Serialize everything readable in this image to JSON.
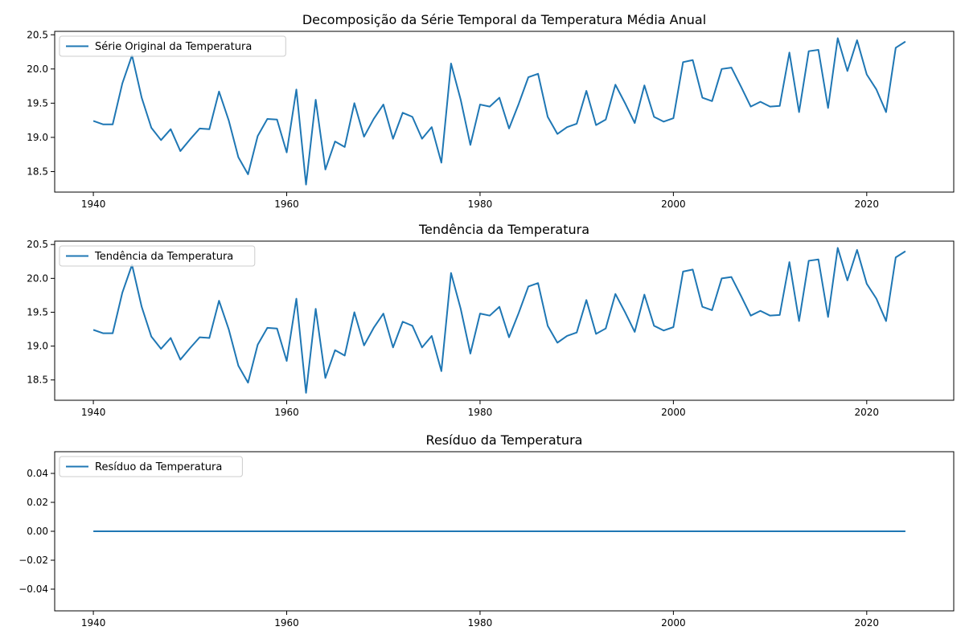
{
  "chart_data": [
    {
      "type": "line",
      "title": "Decomposição da Série Temporal da Temperatura Média Anual",
      "xlabel": "",
      "ylabel": "",
      "xlim": [
        1936,
        2029
      ],
      "ylim": [
        18.2,
        20.55
      ],
      "xticks": [
        1940,
        1960,
        1980,
        2000,
        2020
      ],
      "yticks": [
        18.5,
        19.0,
        19.5,
        20.0,
        20.5
      ],
      "ytick_labels": [
        "18.5",
        "19.0",
        "19.5",
        "20.0",
        "20.5"
      ],
      "legend": {
        "placement": "upper-left",
        "entries": [
          "Série Original da Temperatura"
        ]
      },
      "color": "#1f77b4",
      "grid": false,
      "series": [
        {
          "name": "Série Original da Temperatura",
          "x": [
            1940,
            1941,
            1942,
            1943,
            1944,
            1945,
            1946,
            1947,
            1948,
            1949,
            1950,
            1951,
            1952,
            1953,
            1954,
            1955,
            1956,
            1957,
            1958,
            1959,
            1960,
            1961,
            1962,
            1963,
            1964,
            1965,
            1966,
            1967,
            1968,
            1969,
            1970,
            1971,
            1972,
            1973,
            1974,
            1975,
            1976,
            1977,
            1978,
            1979,
            1980,
            1981,
            1982,
            1983,
            1984,
            1985,
            1986,
            1987,
            1988,
            1989,
            1990,
            1991,
            1992,
            1993,
            1994,
            1995,
            1996,
            1997,
            1998,
            1999,
            2000,
            2001,
            2002,
            2003,
            2004,
            2005,
            2006,
            2007,
            2008,
            2009,
            2010,
            2011,
            2012,
            2013,
            2014,
            2015,
            2016,
            2017,
            2018,
            2019,
            2020,
            2021,
            2022,
            2023,
            2024
          ],
          "y": [
            19.24,
            19.19,
            19.19,
            19.79,
            20.2,
            19.58,
            19.14,
            18.96,
            19.12,
            18.8,
            18.97,
            19.13,
            19.12,
            19.67,
            19.25,
            18.71,
            18.46,
            19.02,
            19.27,
            19.26,
            18.78,
            19.7,
            18.31,
            19.55,
            18.53,
            18.94,
            18.86,
            19.5,
            19.01,
            19.27,
            19.48,
            18.98,
            19.36,
            19.3,
            18.98,
            19.15,
            18.63,
            20.08,
            19.55,
            18.89,
            19.48,
            19.45,
            19.58,
            19.13,
            19.49,
            19.88,
            19.93,
            19.3,
            19.05,
            19.15,
            19.2,
            19.68,
            19.18,
            19.26,
            19.77,
            19.5,
            19.21,
            19.76,
            19.3,
            19.23,
            19.28,
            20.1,
            20.13,
            19.58,
            19.53,
            20.0,
            20.02,
            19.74,
            19.45,
            19.52,
            19.45,
            19.46,
            20.24,
            19.37,
            20.26,
            20.28,
            19.43,
            20.45,
            19.97,
            20.42,
            19.92,
            19.7,
            19.37,
            20.31,
            20.4
          ]
        }
      ]
    },
    {
      "type": "line",
      "title": "Tendência da Temperatura",
      "xlabel": "",
      "ylabel": "",
      "xlim": [
        1936,
        2029
      ],
      "ylim": [
        18.2,
        20.55
      ],
      "xticks": [
        1940,
        1960,
        1980,
        2000,
        2020
      ],
      "yticks": [
        18.5,
        19.0,
        19.5,
        20.0,
        20.5
      ],
      "ytick_labels": [
        "18.5",
        "19.0",
        "19.5",
        "20.0",
        "20.5"
      ],
      "legend": {
        "placement": "upper-left",
        "entries": [
          "Tendência da Temperatura"
        ]
      },
      "color": "#1f77b4",
      "grid": false,
      "series": [
        {
          "name": "Tendência da Temperatura",
          "x": [
            1940,
            1941,
            1942,
            1943,
            1944,
            1945,
            1946,
            1947,
            1948,
            1949,
            1950,
            1951,
            1952,
            1953,
            1954,
            1955,
            1956,
            1957,
            1958,
            1959,
            1960,
            1961,
            1962,
            1963,
            1964,
            1965,
            1966,
            1967,
            1968,
            1969,
            1970,
            1971,
            1972,
            1973,
            1974,
            1975,
            1976,
            1977,
            1978,
            1979,
            1980,
            1981,
            1982,
            1983,
            1984,
            1985,
            1986,
            1987,
            1988,
            1989,
            1990,
            1991,
            1992,
            1993,
            1994,
            1995,
            1996,
            1997,
            1998,
            1999,
            2000,
            2001,
            2002,
            2003,
            2004,
            2005,
            2006,
            2007,
            2008,
            2009,
            2010,
            2011,
            2012,
            2013,
            2014,
            2015,
            2016,
            2017,
            2018,
            2019,
            2020,
            2021,
            2022,
            2023,
            2024
          ],
          "y": [
            19.24,
            19.19,
            19.19,
            19.79,
            20.2,
            19.58,
            19.14,
            18.96,
            19.12,
            18.8,
            18.97,
            19.13,
            19.12,
            19.67,
            19.25,
            18.71,
            18.46,
            19.02,
            19.27,
            19.26,
            18.78,
            19.7,
            18.31,
            19.55,
            18.53,
            18.94,
            18.86,
            19.5,
            19.01,
            19.27,
            19.48,
            18.98,
            19.36,
            19.3,
            18.98,
            19.15,
            18.63,
            20.08,
            19.55,
            18.89,
            19.48,
            19.45,
            19.58,
            19.13,
            19.49,
            19.88,
            19.93,
            19.3,
            19.05,
            19.15,
            19.2,
            19.68,
            19.18,
            19.26,
            19.77,
            19.5,
            19.21,
            19.76,
            19.3,
            19.23,
            19.28,
            20.1,
            20.13,
            19.58,
            19.53,
            20.0,
            20.02,
            19.74,
            19.45,
            19.52,
            19.45,
            19.46,
            20.24,
            19.37,
            20.26,
            20.28,
            19.43,
            20.45,
            19.97,
            20.42,
            19.92,
            19.7,
            19.37,
            20.31,
            20.4
          ]
        }
      ]
    },
    {
      "type": "line",
      "title": "Resíduo da Temperatura",
      "xlabel": "",
      "ylabel": "",
      "xlim": [
        1936,
        2029
      ],
      "ylim": [
        -0.055,
        0.055
      ],
      "xticks": [
        1940,
        1960,
        1980,
        2000,
        2020
      ],
      "yticks": [
        -0.04,
        -0.02,
        0.0,
        0.02,
        0.04
      ],
      "ytick_labels": [
        "−0.04",
        "−0.02",
        "0.00",
        "0.02",
        "0.04"
      ],
      "legend": {
        "placement": "upper-left",
        "entries": [
          "Resíduo da Temperatura"
        ]
      },
      "color": "#1f77b4",
      "grid": false,
      "series": [
        {
          "name": "Resíduo da Temperatura",
          "x": [
            1940,
            2024
          ],
          "y": [
            0.0,
            0.0
          ]
        }
      ]
    }
  ]
}
